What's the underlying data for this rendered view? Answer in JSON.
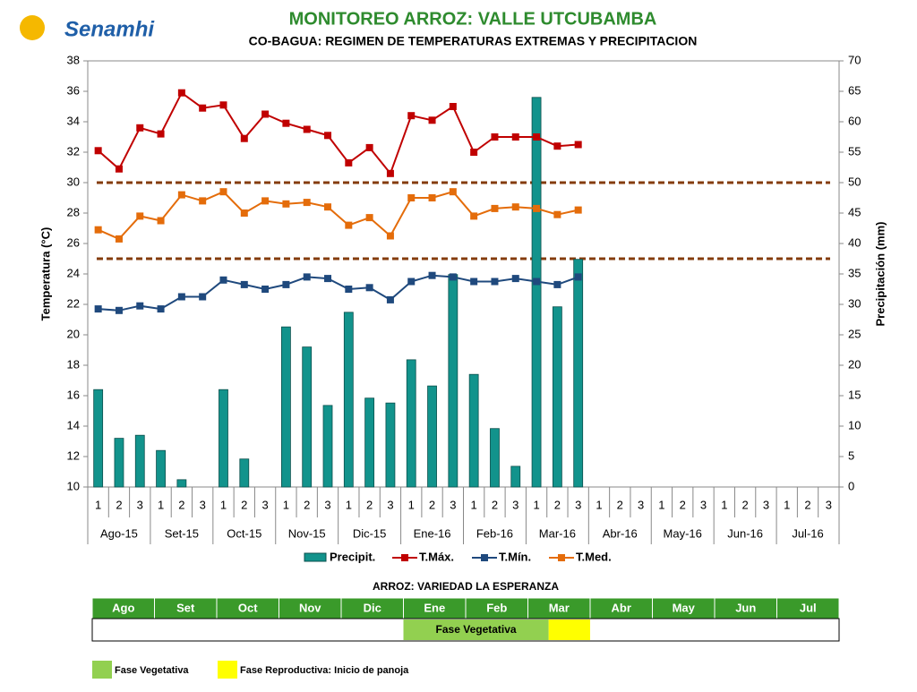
{
  "logo": "Senamhi",
  "chart_data": {
    "type": "bar-line",
    "title": "MONITOREO ARROZ: VALLE UTCUBAMBA",
    "subtitle": "CO-BAGUA: REGIMEN DE TEMPERATURAS EXTREMAS Y PRECIPITACION",
    "y_label": "Temperatura (°C)",
    "y2_label": "Precipitación (mm)",
    "months": [
      "Ago-15",
      "Set-15",
      "Oct-15",
      "Nov-15",
      "Dic-15",
      "Ene-16",
      "Feb-16",
      "Mar-16",
      "Abr-16",
      "May-16",
      "Jun-16",
      "Jul-16"
    ],
    "categories": [
      "1",
      "2",
      "3",
      "1",
      "2",
      "3",
      "1",
      "2",
      "3",
      "1",
      "2",
      "3",
      "1",
      "2",
      "3",
      "1",
      "2",
      "3",
      "1",
      "2",
      "3",
      "1",
      "2",
      "3",
      "1",
      "2",
      "3",
      "1",
      "2",
      "3",
      "1",
      "2",
      "3",
      "1",
      "2",
      "3"
    ],
    "ylim": [
      10,
      38
    ],
    "yticks": [
      10,
      12,
      14,
      16,
      18,
      20,
      22,
      24,
      26,
      28,
      30,
      32,
      34,
      36,
      38
    ],
    "y2lim": [
      0,
      70
    ],
    "y2ticks": [
      0,
      5,
      10,
      15,
      20,
      25,
      30,
      35,
      40,
      45,
      50,
      55,
      60,
      65,
      70
    ],
    "hlines": [
      30,
      25
    ],
    "hline_color": "#843c0c",
    "series": [
      {
        "name": "Precipit.",
        "kind": "bar",
        "axis": "y2",
        "color": "#12938c",
        "values": [
          16,
          8,
          8.5,
          6,
          1.2,
          0,
          16,
          4.6,
          0,
          26.3,
          23,
          13.4,
          28.7,
          14.6,
          13.8,
          20.9,
          16.6,
          34.9,
          18.5,
          9.6,
          3.4,
          64,
          29.6,
          37.4,
          null,
          null,
          null,
          null,
          null,
          null,
          null,
          null,
          null,
          null,
          null,
          null
        ]
      },
      {
        "name": "T.Máx.",
        "kind": "line",
        "color": "#c00000",
        "values": [
          32.1,
          30.9,
          33.6,
          33.2,
          35.9,
          34.9,
          35.1,
          32.9,
          34.5,
          33.9,
          33.5,
          33.1,
          31.3,
          32.3,
          30.6,
          34.4,
          34.1,
          35.0,
          32.0,
          33.0,
          33.0,
          33.0,
          32.4,
          32.5,
          null,
          null,
          null,
          null,
          null,
          null,
          null,
          null,
          null,
          null,
          null,
          null
        ]
      },
      {
        "name": "T.Mín.",
        "kind": "line",
        "color": "#1f497d",
        "values": [
          21.7,
          21.6,
          21.9,
          21.7,
          22.5,
          22.5,
          23.6,
          23.3,
          23.0,
          23.3,
          23.8,
          23.7,
          23.0,
          23.1,
          22.3,
          23.5,
          23.9,
          23.8,
          23.5,
          23.5,
          23.7,
          23.5,
          23.3,
          23.8,
          null,
          null,
          null,
          null,
          null,
          null,
          null,
          null,
          null,
          null,
          null,
          null
        ]
      },
      {
        "name": "T.Med.",
        "kind": "line",
        "color": "#e46c0a",
        "values": [
          26.9,
          26.3,
          27.8,
          27.5,
          29.2,
          28.8,
          29.4,
          28.0,
          28.8,
          28.6,
          28.7,
          28.4,
          27.2,
          27.7,
          26.5,
          29.0,
          29.0,
          29.4,
          27.8,
          28.3,
          28.4,
          28.3,
          27.9,
          28.2,
          null,
          null,
          null,
          null,
          null,
          null,
          null,
          null,
          null,
          null,
          null,
          null
        ]
      }
    ]
  },
  "phase_table": {
    "title": "ARROZ: VARIEDAD LA ESPERANZA",
    "months": [
      "Ago",
      "Set",
      "Oct",
      "Nov",
      "Dic",
      "Ene",
      "Feb",
      "Mar",
      "Abr",
      "May",
      "Jun",
      "Jul"
    ],
    "phases": [
      {
        "label": "Fase Vegetativa",
        "color": "#92d050",
        "from": [
          "Ene",
          1
        ],
        "to": [
          "Mar",
          1
        ]
      },
      {
        "color": "#ffff00",
        "from": [
          "Mar",
          2
        ],
        "to": [
          "Mar",
          3
        ]
      }
    ],
    "legend": [
      {
        "label": "Fase Vegetativa",
        "color": "#92d050"
      },
      {
        "label": "Fase Reproductiva: Inicio de panoja",
        "color": "#ffff00"
      }
    ]
  }
}
